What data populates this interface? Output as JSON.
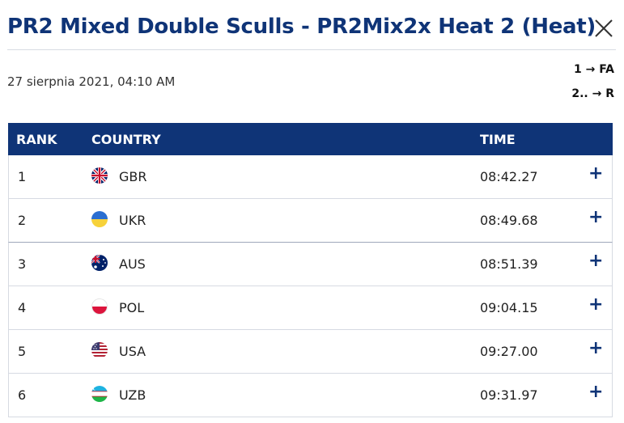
{
  "header": {
    "title": "PR2 Mixed Double Sculls - PR2Mix2x Heat 2 (Heat)",
    "close_icon": "close-icon"
  },
  "meta": {
    "date": "27 sierpnia 2021, 04:10 AM",
    "progression": [
      "1 → FA",
      "2.. → R"
    ]
  },
  "table": {
    "columns": [
      "RANK",
      "COUNTRY",
      "TIME"
    ],
    "rows": [
      {
        "rank": "1",
        "country": "GBR",
        "time": "08:42.27",
        "flag": "gbr-flag-icon",
        "expand": "+"
      },
      {
        "rank": "2",
        "country": "UKR",
        "time": "08:49.68",
        "flag": "ukr-flag-icon",
        "expand": "+"
      },
      {
        "rank": "3",
        "country": "AUS",
        "time": "08:51.39",
        "flag": "aus-flag-icon",
        "expand": "+"
      },
      {
        "rank": "4",
        "country": "POL",
        "time": "09:04.15",
        "flag": "pol-flag-icon",
        "expand": "+"
      },
      {
        "rank": "5",
        "country": "USA",
        "time": "09:27.00",
        "flag": "usa-flag-icon",
        "expand": "+"
      },
      {
        "rank": "6",
        "country": "UZB",
        "time": "09:31.97",
        "flag": "uzb-flag-icon",
        "expand": "+"
      }
    ]
  },
  "colors": {
    "brand": "#0f3477",
    "header_bg": "#0f3477",
    "text": "#222222"
  }
}
